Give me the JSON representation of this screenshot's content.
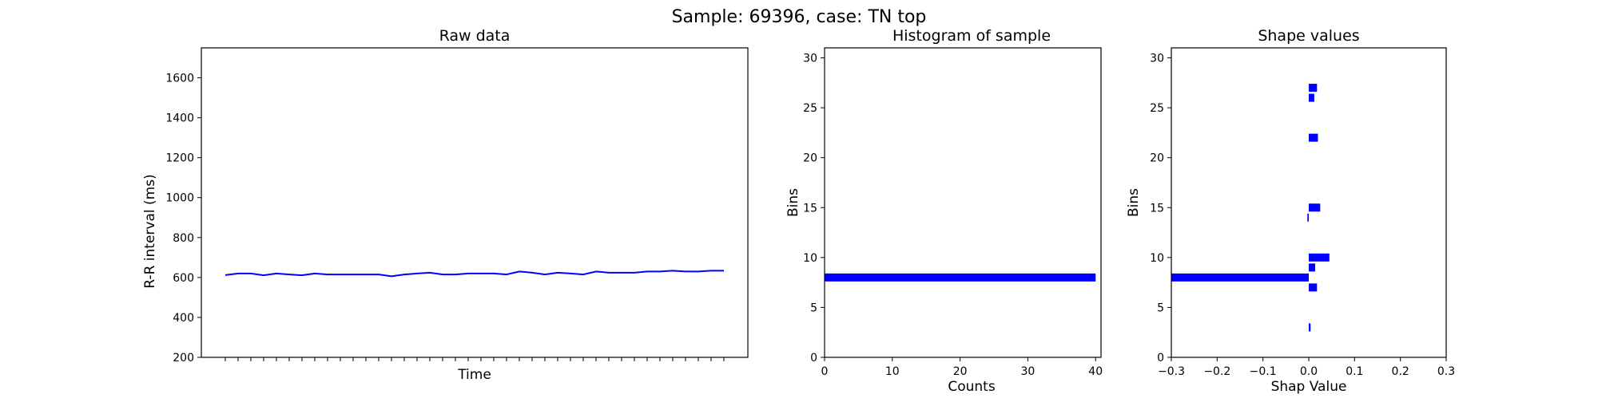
{
  "suptitle": "Sample: 69396, case: TN top",
  "chart_data": [
    {
      "type": "line",
      "title": "Raw data",
      "xlabel": "Time",
      "ylabel": "R-R interval (ms)",
      "ylim": [
        200,
        1750
      ],
      "yticks": [
        200,
        400,
        600,
        800,
        1000,
        1200,
        1400,
        1600
      ],
      "x_tick_labels_shown": false,
      "grid": false,
      "color": "#0000ff",
      "values": [
        612,
        620,
        620,
        611,
        620,
        615,
        611,
        620,
        615,
        615,
        615,
        615,
        615,
        606,
        615,
        620,
        624,
        615,
        615,
        620,
        620,
        620,
        615,
        630,
        624,
        615,
        624,
        620,
        615,
        630,
        624,
        624,
        624,
        630,
        630,
        634,
        630,
        630,
        634,
        634
      ]
    },
    {
      "type": "bar",
      "orientation": "horizontal",
      "title": "Histogram of sample",
      "xlabel": "Counts",
      "ylabel": "Bins",
      "xlim": [
        0,
        40.8
      ],
      "ylim": [
        0,
        31
      ],
      "xticks": [
        0,
        10,
        20,
        30,
        40
      ],
      "yticks": [
        0,
        5,
        10,
        15,
        20,
        25,
        30
      ],
      "grid": false,
      "color": "#0000ff",
      "bars": [
        {
          "bin": 8,
          "value": 40
        }
      ]
    },
    {
      "type": "bar",
      "orientation": "horizontal",
      "title": "Shape values",
      "xlabel": "Shap Value",
      "ylabel": "Bins",
      "xlim": [
        -0.3,
        0.3
      ],
      "ylim": [
        0,
        31
      ],
      "xticks": [
        -0.3,
        -0.2,
        -0.1,
        0.0,
        0.1,
        0.2,
        0.3
      ],
      "xtick_labels": [
        "−0.3",
        "−0.2",
        "−0.1",
        "0.0",
        "0.1",
        "0.2",
        "0.3"
      ],
      "yticks": [
        0,
        5,
        10,
        15,
        20,
        25,
        30
      ],
      "grid": false,
      "color": "#0000ff",
      "bars": [
        {
          "bin": 3,
          "value": 0.004
        },
        {
          "bin": 7,
          "value": 0.018
        },
        {
          "bin": 8,
          "value": -0.3
        },
        {
          "bin": 9,
          "value": 0.014
        },
        {
          "bin": 10,
          "value": 0.045
        },
        {
          "bin": 14,
          "value": -0.003
        },
        {
          "bin": 15,
          "value": 0.025
        },
        {
          "bin": 22,
          "value": 0.02
        },
        {
          "bin": 26,
          "value": 0.012
        },
        {
          "bin": 27,
          "value": 0.018
        }
      ]
    }
  ]
}
